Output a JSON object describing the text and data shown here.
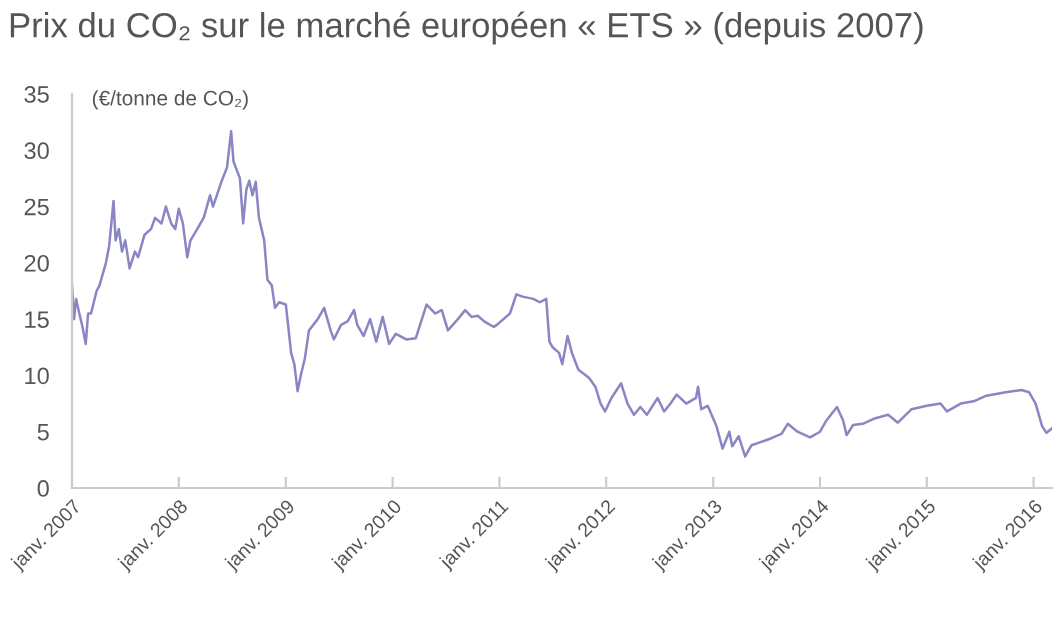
{
  "chart_data": {
    "type": "line",
    "title": "Prix du CO₂ sur le marché européen « ETS » (depuis 2007)",
    "ylabel": "(€/tonne de CO₂)",
    "x": [
      "2007-01-01",
      "2007-01-08",
      "2007-01-15",
      "2007-01-26",
      "2007-02-06",
      "2007-02-17",
      "2007-02-25",
      "2007-03-07",
      "2007-03-26",
      "2007-04-05",
      "2007-04-27",
      "2007-05-08",
      "2007-05-23",
      "2007-05-30",
      "2007-06-10",
      "2007-06-21",
      "2007-07-02",
      "2007-07-17",
      "2007-08-04",
      "2007-08-15",
      "2007-09-06",
      "2007-09-28",
      "2007-10-12",
      "2007-11-03",
      "2007-11-18",
      "2007-12-06",
      "2007-12-20",
      "2008-01-01",
      "2008-01-15",
      "2008-01-30",
      "2008-02-10",
      "2008-03-04",
      "2008-03-26",
      "2008-04-17",
      "2008-04-27",
      "2008-05-23",
      "2008-06-14",
      "2008-06-28",
      "2008-07-06",
      "2008-07-28",
      "2008-08-08",
      "2008-08-19",
      "2008-08-29",
      "2008-09-09",
      "2008-09-20",
      "2008-10-01",
      "2008-10-19",
      "2008-10-30",
      "2008-11-14",
      "2008-11-25",
      "2008-12-09",
      "2009-01-01",
      "2009-01-19",
      "2009-01-30",
      "2009-02-10",
      "2009-02-21",
      "2009-03-07",
      "2009-03-21",
      "2009-04-20",
      "2009-05-12",
      "2009-06-03",
      "2009-06-14",
      "2009-07-09",
      "2009-07-31",
      "2009-08-22",
      "2009-09-02",
      "2009-09-24",
      "2009-10-16",
      "2009-11-06",
      "2009-11-28",
      "2009-12-20",
      "2010-01-12",
      "2010-02-17",
      "2010-03-21",
      "2010-04-27",
      "2010-05-27",
      "2010-06-18",
      "2010-07-09",
      "2010-08-12",
      "2010-09-06",
      "2010-09-28",
      "2010-10-19",
      "2010-11-10",
      "2010-12-13",
      "2010-12-28",
      "2011-01-15",
      "2011-02-06",
      "2011-02-28",
      "2011-03-21",
      "2011-04-27",
      "2011-05-19",
      "2011-06-10",
      "2011-06-21",
      "2011-07-02",
      "2011-07-24",
      "2011-08-04",
      "2011-08-22",
      "2011-09-06",
      "2011-09-28",
      "2011-11-03",
      "2011-11-25",
      "2011-12-13",
      "2011-12-28",
      "2012-01-19",
      "2012-02-21",
      "2012-03-14",
      "2012-04-05",
      "2012-04-27",
      "2012-05-19",
      "2012-06-25",
      "2012-07-17",
      "2012-08-08",
      "2012-08-29",
      "2012-10-01",
      "2012-11-03",
      "2012-11-10",
      "2012-11-21",
      "2012-12-13",
      "2013-01-12",
      "2013-02-02",
      "2013-02-25",
      "2013-03-07",
      "2013-03-29",
      "2013-04-20",
      "2013-05-12",
      "2013-06-14",
      "2013-07-17",
      "2013-08-22",
      "2013-09-13",
      "2013-10-16",
      "2013-11-28",
      "2014-01-01",
      "2014-01-23",
      "2014-02-28",
      "2014-03-21",
      "2014-04-02",
      "2014-04-24",
      "2014-05-27",
      "2014-07-09",
      "2014-08-22",
      "2014-09-24",
      "2014-11-10",
      "2015-01-01",
      "2015-02-17",
      "2015-03-11",
      "2015-04-27",
      "2015-06-10",
      "2015-07-24",
      "2015-09-28",
      "2015-11-21",
      "2015-12-17",
      "2016-01-08",
      "2016-01-30",
      "2016-02-14",
      "2016-03-04"
    ],
    "series": [
      {
        "color": "#8a86c4",
        "values": [
          18,
          15,
          16.8,
          15.5,
          14.3,
          12.8,
          15.5,
          15.5,
          17.5,
          18,
          20,
          21.5,
          25.5,
          22,
          23,
          21,
          22,
          19.5,
          21,
          20.5,
          22.5,
          23,
          24,
          23.5,
          25,
          23.5,
          23,
          24.8,
          23.5,
          20.5,
          22,
          23,
          24,
          26,
          25,
          27,
          28.5,
          31.7,
          29,
          27.5,
          23.5,
          26.5,
          27.3,
          26,
          27.2,
          24,
          22,
          18.5,
          18,
          16,
          16.5,
          16.3,
          12,
          11,
          8.6,
          10,
          11.5,
          14,
          15,
          16,
          14,
          13.2,
          14.5,
          14.8,
          15.8,
          14.5,
          13.5,
          15,
          13,
          15.2,
          12.8,
          13.7,
          13.2,
          13.3,
          16.3,
          15.5,
          15.8,
          14,
          15,
          15.8,
          15.2,
          15.3,
          14.8,
          14.3,
          14.6,
          15,
          15.5,
          17.2,
          17,
          16.8,
          16.5,
          16.8,
          13,
          12.5,
          12,
          11,
          13.5,
          12,
          10.5,
          9.8,
          9,
          7.5,
          6.8,
          8,
          9.3,
          7.5,
          6.5,
          7.2,
          6.5,
          8,
          6.8,
          7.5,
          8.3,
          7.5,
          8,
          9,
          7,
          7.3,
          5.5,
          3.5,
          5,
          3.7,
          4.6,
          2.8,
          3.8,
          4.1,
          4.4,
          4.8,
          5.7,
          5,
          4.5,
          5,
          6,
          7.2,
          6,
          4.7,
          5.6,
          5.7,
          6.2,
          6.5,
          5.8,
          7,
          7.3,
          7.5,
          6.8,
          7.5,
          7.7,
          8.2,
          8.5,
          8.7,
          8.5,
          7.5,
          5.5,
          4.9,
          5.3
        ]
      }
    ],
    "xlim": [
      "2007-01-01",
      "2016-03-04"
    ],
    "xticks": [
      {
        "value": "2007-01-01",
        "label": "janv. 2007"
      },
      {
        "value": "2008-01-01",
        "label": "janv. 2008"
      },
      {
        "value": "2009-01-01",
        "label": "janv. 2009"
      },
      {
        "value": "2010-01-01",
        "label": "janv. 2010"
      },
      {
        "value": "2011-01-01",
        "label": "janv. 2011"
      },
      {
        "value": "2012-01-01",
        "label": "janv. 2012"
      },
      {
        "value": "2013-01-01",
        "label": "janv. 2013"
      },
      {
        "value": "2014-01-01",
        "label": "janv. 2014"
      },
      {
        "value": "2015-01-01",
        "label": "janv. 2015"
      },
      {
        "value": "2016-01-01",
        "label": "janv. 2016"
      }
    ],
    "ylim": [
      0,
      35
    ],
    "yticks": [
      0,
      5,
      10,
      15,
      20,
      25,
      30,
      35
    ],
    "grid": false,
    "legend": false,
    "marker": "none",
    "line_style": "solid"
  }
}
